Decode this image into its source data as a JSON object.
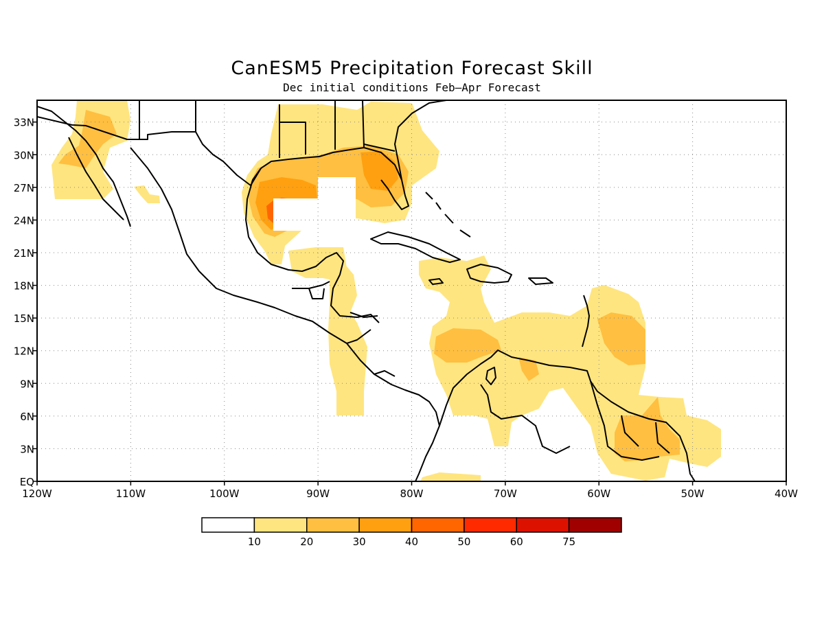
{
  "title": "CanESM5 Precipitation Forecast Skill",
  "subtitle": "Dec initial conditions  Feb–Apr Forecast",
  "map": {
    "lon_range": [
      -120,
      -40
    ],
    "lat_range": [
      0,
      35
    ],
    "x_ticks": [
      {
        "lon": -120,
        "label": "120W"
      },
      {
        "lon": -110,
        "label": "110W"
      },
      {
        "lon": -100,
        "label": "100W"
      },
      {
        "lon": -90,
        "label": "90W"
      },
      {
        "lon": -80,
        "label": "80W"
      },
      {
        "lon": -70,
        "label": "70W"
      },
      {
        "lon": -60,
        "label": "60W"
      },
      {
        "lon": -50,
        "label": "50W"
      },
      {
        "lon": -40,
        "label": "40W"
      }
    ],
    "y_ticks": [
      {
        "lat": 0,
        "label": "EQ"
      },
      {
        "lat": 3,
        "label": "3N"
      },
      {
        "lat": 6,
        "label": "6N"
      },
      {
        "lat": 9,
        "label": "9N"
      },
      {
        "lat": 12,
        "label": "12N"
      },
      {
        "lat": 15,
        "label": "15N"
      },
      {
        "lat": 18,
        "label": "18N"
      },
      {
        "lat": 21,
        "label": "21N"
      },
      {
        "lat": 24,
        "label": "24N"
      },
      {
        "lat": 27,
        "label": "27N"
      },
      {
        "lat": 30,
        "label": "30N"
      },
      {
        "lat": 33,
        "label": "33N"
      }
    ],
    "grid_lines": "dotted"
  },
  "colorbar": {
    "labels": [
      "10",
      "20",
      "30",
      "40",
      "50",
      "60",
      "75"
    ],
    "colors": [
      "#ffffff",
      "#ffe57f",
      "#ffbf40",
      "#ffa010",
      "#ff6600",
      "#ff2a00",
      "#dd1100",
      "#a00000"
    ]
  }
}
